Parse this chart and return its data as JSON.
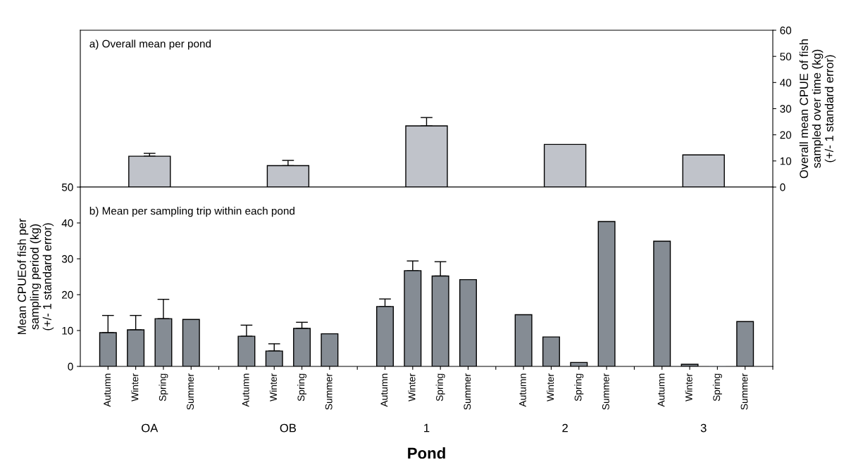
{
  "chart_data": [
    {
      "type": "bar",
      "title": "a) Overall mean per pond",
      "categories": [
        "OA",
        "OB",
        "1",
        "2",
        "3"
      ],
      "series": [
        {
          "color": "#c0c3ca",
          "axis": "y2",
          "values": [
            11.8,
            8.2,
            23.4,
            16.3,
            12.3
          ],
          "errors": [
            [
              11.8,
              12.9
            ],
            [
              8.2,
              10.2
            ],
            [
              23.4,
              26.6
            ],
            null,
            null
          ]
        }
      ],
      "y2label": "Overall mean CPUE of fish\nsampled over time (kg)\n(+/- 1 standard error)",
      "y2lim": [
        0,
        60
      ],
      "y2ticks": [
        0,
        10,
        20,
        30,
        40,
        50,
        60
      ],
      "tick_labels": "y",
      "grid": false,
      "legend": false
    },
    {
      "type": "bar",
      "title": "b) Mean per sampling trip within each pond",
      "xlabel": "Pond",
      "ylabel": "Mean CPUEof fish per\nsampling period (kg)\n(+/- 1 standard error)",
      "categories": [
        "Autumn",
        "Winter",
        "Spring",
        "Summer",
        null,
        "Autumn",
        "Winter",
        "Spring",
        "Summer",
        null,
        "Autumn",
        "Winter",
        "Spring",
        "Summer",
        null,
        "Autumn",
        "Winter",
        "Spring",
        "Summer",
        null,
        "Autumn",
        "Winter",
        "Spring",
        "Summer"
      ],
      "series": [
        {
          "color": "#858c94",
          "values": [
            9.4,
            10.2,
            13.3,
            13.1,
            null,
            8.4,
            4.3,
            10.6,
            9.1,
            null,
            16.7,
            26.7,
            25.2,
            24.2,
            null,
            14.4,
            8.2,
            1.1,
            40.4,
            null,
            34.9,
            0.6,
            0,
            12.5
          ],
          "errors": [
            [
              9.4,
              14.2
            ],
            [
              10.2,
              14.2
            ],
            [
              13.3,
              18.7
            ],
            null,
            null,
            [
              8.4,
              11.5
            ],
            [
              4.3,
              6.3
            ],
            [
              10.6,
              12.3
            ],
            null,
            null,
            [
              16.7,
              18.8
            ],
            [
              26.7,
              29.4
            ],
            [
              25.2,
              29.2
            ],
            null,
            null,
            null,
            null,
            null,
            null,
            null,
            null,
            null,
            null,
            null
          ]
        }
      ],
      "ylim": [
        0,
        50
      ],
      "yticks": [
        0,
        10,
        20,
        30,
        40,
        50
      ],
      "grid": false,
      "legend": false
    }
  ]
}
